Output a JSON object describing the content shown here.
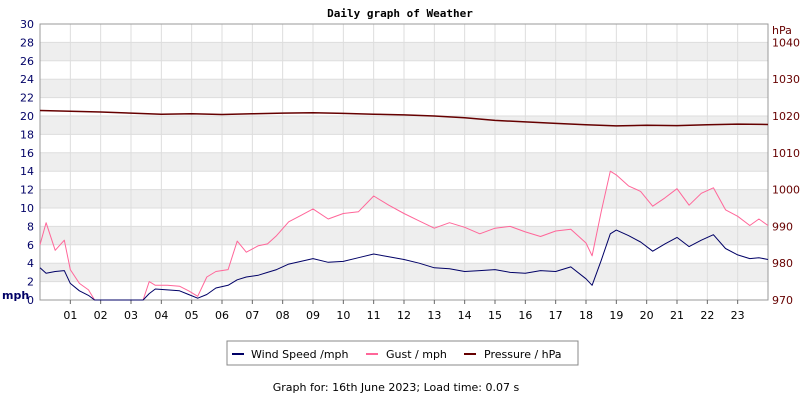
{
  "chart_data": {
    "type": "line",
    "title": "Daily graph of Weather",
    "left_axis": {
      "unit_label": "mph",
      "ylim": [
        0,
        30
      ],
      "ticks": [
        "0",
        "2",
        "4",
        "6",
        "8",
        "10",
        "12",
        "14",
        "16",
        "18",
        "20",
        "22",
        "24",
        "26",
        "28",
        "30"
      ]
    },
    "right_axis": {
      "unit_label": "hPa",
      "ylim": [
        970,
        1045
      ],
      "ticks": [
        "970",
        "980",
        "990",
        "1000",
        "1010",
        "1020",
        "1030",
        "1040"
      ]
    },
    "x_axis": {
      "unit": "hour",
      "xlim": [
        0,
        24
      ],
      "ticks": [
        "01",
        "02",
        "03",
        "04",
        "05",
        "06",
        "07",
        "08",
        "09",
        "10",
        "11",
        "12",
        "13",
        "14",
        "15",
        "16",
        "17",
        "18",
        "19",
        "20",
        "21",
        "22",
        "23"
      ]
    },
    "grid": "horizontal bands",
    "legend_position": "bottom",
    "series": [
      {
        "name": "Wind Speed /mph",
        "color": "#000066",
        "axis": "left",
        "points": [
          [
            0,
            3.5
          ],
          [
            0.2,
            2.9
          ],
          [
            0.5,
            3.1
          ],
          [
            0.8,
            3.2
          ],
          [
            1.0,
            1.8
          ],
          [
            1.3,
            1.0
          ],
          [
            1.6,
            0.5
          ],
          [
            1.8,
            0
          ],
          [
            2.5,
            0
          ],
          [
            3.0,
            0
          ],
          [
            3.4,
            0
          ],
          [
            3.6,
            0.7
          ],
          [
            3.8,
            1.2
          ],
          [
            4.2,
            1.1
          ],
          [
            4.6,
            1.0
          ],
          [
            4.9,
            0.6
          ],
          [
            5.2,
            0.2
          ],
          [
            5.5,
            0.6
          ],
          [
            5.8,
            1.3
          ],
          [
            6.2,
            1.6
          ],
          [
            6.5,
            2.2
          ],
          [
            6.8,
            2.5
          ],
          [
            7.2,
            2.7
          ],
          [
            7.5,
            3.0
          ],
          [
            7.8,
            3.3
          ],
          [
            8.2,
            3.9
          ],
          [
            8.6,
            4.2
          ],
          [
            9.0,
            4.5
          ],
          [
            9.5,
            4.1
          ],
          [
            10.0,
            4.2
          ],
          [
            10.5,
            4.6
          ],
          [
            11.0,
            5.0
          ],
          [
            11.5,
            4.7
          ],
          [
            12.0,
            4.4
          ],
          [
            12.5,
            4.0
          ],
          [
            13.0,
            3.5
          ],
          [
            13.5,
            3.4
          ],
          [
            14.0,
            3.1
          ],
          [
            14.5,
            3.2
          ],
          [
            15.0,
            3.3
          ],
          [
            15.5,
            3.0
          ],
          [
            16.0,
            2.9
          ],
          [
            16.5,
            3.2
          ],
          [
            17.0,
            3.1
          ],
          [
            17.5,
            3.6
          ],
          [
            18.0,
            2.3
          ],
          [
            18.2,
            1.6
          ],
          [
            18.5,
            4.3
          ],
          [
            18.8,
            7.2
          ],
          [
            19.0,
            7.6
          ],
          [
            19.4,
            7.0
          ],
          [
            19.8,
            6.3
          ],
          [
            20.2,
            5.3
          ],
          [
            20.6,
            6.1
          ],
          [
            21.0,
            6.8
          ],
          [
            21.4,
            5.8
          ],
          [
            21.8,
            6.5
          ],
          [
            22.2,
            7.1
          ],
          [
            22.6,
            5.6
          ],
          [
            23.0,
            4.9
          ],
          [
            23.4,
            4.5
          ],
          [
            23.7,
            4.6
          ],
          [
            24,
            4.4
          ]
        ]
      },
      {
        "name": "Gust / mph",
        "color": "#ff6699",
        "axis": "left",
        "points": [
          [
            0,
            6.0
          ],
          [
            0.2,
            8.4
          ],
          [
            0.5,
            5.4
          ],
          [
            0.8,
            6.5
          ],
          [
            1.0,
            3.3
          ],
          [
            1.3,
            1.8
          ],
          [
            1.6,
            1.1
          ],
          [
            1.8,
            0
          ],
          [
            2.5,
            0
          ],
          [
            3.0,
            0
          ],
          [
            3.4,
            0
          ],
          [
            3.6,
            2.0
          ],
          [
            3.8,
            1.6
          ],
          [
            4.2,
            1.6
          ],
          [
            4.6,
            1.5
          ],
          [
            4.9,
            1.0
          ],
          [
            5.2,
            0.4
          ],
          [
            5.5,
            2.5
          ],
          [
            5.8,
            3.1
          ],
          [
            6.2,
            3.3
          ],
          [
            6.5,
            6.4
          ],
          [
            6.8,
            5.2
          ],
          [
            7.2,
            5.9
          ],
          [
            7.5,
            6.1
          ],
          [
            7.8,
            7.0
          ],
          [
            8.2,
            8.5
          ],
          [
            8.6,
            9.2
          ],
          [
            9.0,
            9.9
          ],
          [
            9.5,
            8.8
          ],
          [
            10.0,
            9.4
          ],
          [
            10.5,
            9.6
          ],
          [
            11.0,
            11.3
          ],
          [
            11.5,
            10.3
          ],
          [
            12.0,
            9.4
          ],
          [
            12.5,
            8.6
          ],
          [
            13.0,
            7.8
          ],
          [
            13.5,
            8.4
          ],
          [
            14.0,
            7.9
          ],
          [
            14.5,
            7.2
          ],
          [
            15.0,
            7.8
          ],
          [
            15.5,
            8.0
          ],
          [
            16.0,
            7.4
          ],
          [
            16.5,
            6.9
          ],
          [
            17.0,
            7.5
          ],
          [
            17.5,
            7.7
          ],
          [
            18.0,
            6.2
          ],
          [
            18.2,
            4.8
          ],
          [
            18.5,
            9.6
          ],
          [
            18.8,
            14.0
          ],
          [
            19.0,
            13.6
          ],
          [
            19.4,
            12.4
          ],
          [
            19.8,
            11.8
          ],
          [
            20.2,
            10.2
          ],
          [
            20.6,
            11.1
          ],
          [
            21.0,
            12.1
          ],
          [
            21.4,
            10.3
          ],
          [
            21.8,
            11.6
          ],
          [
            22.2,
            12.2
          ],
          [
            22.6,
            9.8
          ],
          [
            23.0,
            9.1
          ],
          [
            23.4,
            8.1
          ],
          [
            23.7,
            8.8
          ],
          [
            24,
            8.1
          ]
        ]
      },
      {
        "name": "Pressure / hPa",
        "color": "#660000",
        "axis": "right",
        "points": [
          [
            0,
            1021.5
          ],
          [
            1,
            1021.3
          ],
          [
            2,
            1021.1
          ],
          [
            3,
            1020.8
          ],
          [
            4,
            1020.5
          ],
          [
            5,
            1020.6
          ],
          [
            6,
            1020.4
          ],
          [
            7,
            1020.6
          ],
          [
            8,
            1020.8
          ],
          [
            9,
            1020.9
          ],
          [
            10,
            1020.7
          ],
          [
            11,
            1020.5
          ],
          [
            12,
            1020.3
          ],
          [
            13,
            1020.0
          ],
          [
            14,
            1019.5
          ],
          [
            15,
            1018.8
          ],
          [
            16,
            1018.4
          ],
          [
            17,
            1018.0
          ],
          [
            18,
            1017.6
          ],
          [
            19,
            1017.3
          ],
          [
            20,
            1017.5
          ],
          [
            21,
            1017.4
          ],
          [
            22,
            1017.6
          ],
          [
            23,
            1017.8
          ],
          [
            24,
            1017.7
          ]
        ]
      }
    ]
  },
  "footer": {
    "text": "Graph for: 16th June 2023; Load time: 0.07 s"
  }
}
